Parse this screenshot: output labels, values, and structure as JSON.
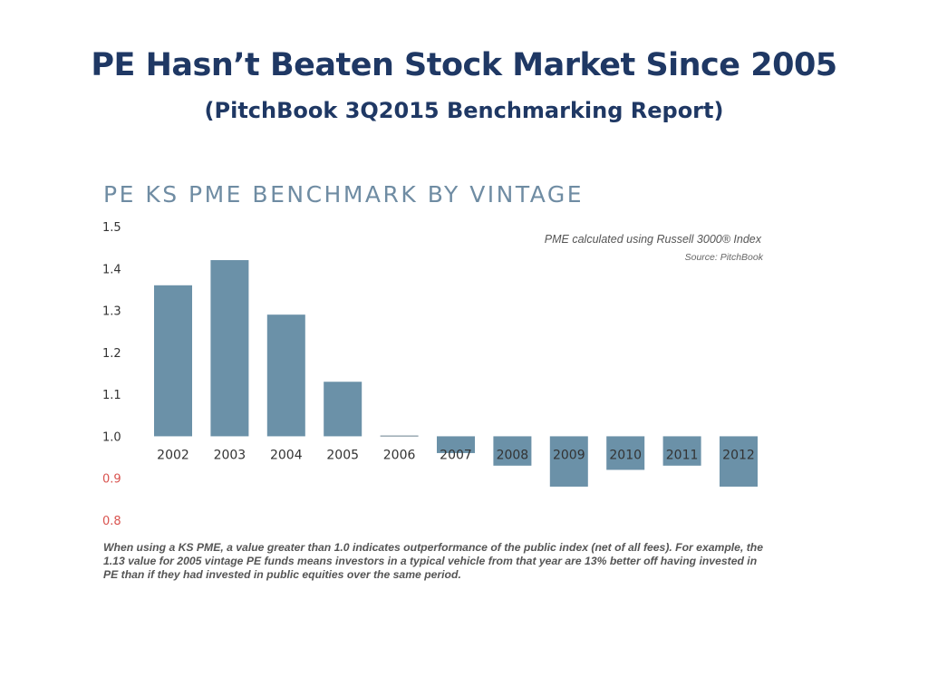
{
  "slide": {
    "title": "PE Hasn’t Beaten Stock Market Since 2005",
    "subtitle": "(PitchBook 3Q2015 Benchmarking Report)"
  },
  "chart_data": {
    "type": "bar",
    "title": "PE KS PME BENCHMARK BY VINTAGE",
    "annotation": "PME calculated using Russell 3000® Index",
    "source": "Source: PitchBook",
    "categories": [
      "2002",
      "2003",
      "2004",
      "2005",
      "2006",
      "2007",
      "2008",
      "2009",
      "2010",
      "2011",
      "2012"
    ],
    "values": [
      1.36,
      1.42,
      1.29,
      1.13,
      1.0,
      0.96,
      0.93,
      0.88,
      0.92,
      0.93,
      0.88
    ],
    "baseline": 1.0,
    "ylim": [
      0.8,
      1.5
    ],
    "yticks": [
      "1.5",
      "1.4",
      "1.3",
      "1.2",
      "1.1",
      "1.0",
      "0.9",
      "0.8"
    ],
    "colors": {
      "bar": "#6b91a8",
      "tick": "#333333",
      "below_baseline_tick": "#d9534f"
    },
    "note": "When using a KS PME, a value greater than 1.0 indicates outperformance of the public index (net of all fees). For example, the 1.13 value for 2005 vintage PE funds means investors in a typical vehicle from that year are 13% better off having invested in PE than if they had invested in public equities over the same period."
  }
}
